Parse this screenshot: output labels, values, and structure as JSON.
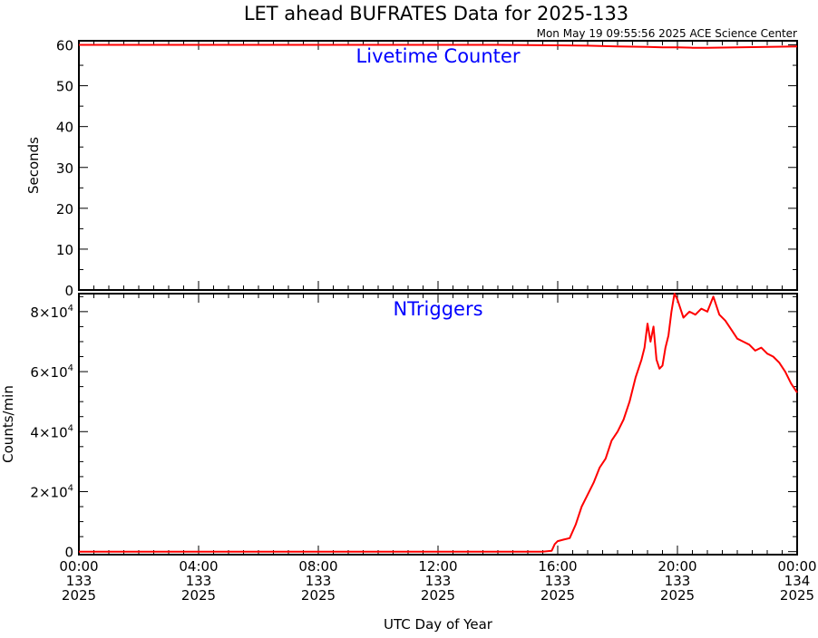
{
  "title": "LET ahead BUFRATES Data for 2025-133",
  "timestamp": "Mon May 19 09:55:56 2025 ACE Science Center",
  "x_axis_label": "UTC Day of Year",
  "colors": {
    "data": "#ff0000",
    "panel_title": "#0000ff",
    "axes": "#000000",
    "background": "#ffffff"
  },
  "chart_data": [
    {
      "type": "line",
      "panel_title": "Livetime Counter",
      "ylabel": "Seconds",
      "ylim": [
        0,
        61
      ],
      "xlim": [
        0,
        24
      ],
      "y_ticks": [
        0,
        10,
        20,
        30,
        40,
        50,
        60
      ],
      "y_tick_labels": [
        "0",
        "10",
        "20",
        "30",
        "40",
        "50",
        "60"
      ],
      "x_ticks": [
        0,
        4,
        8,
        12,
        16,
        20,
        24
      ],
      "x_tick_labels": [
        [
          "00:00",
          "133",
          "2025"
        ],
        [
          "04:00",
          "133",
          "2025"
        ],
        [
          "08:00",
          "133",
          "2025"
        ],
        [
          "12:00",
          "133",
          "2025"
        ],
        [
          "16:00",
          "133",
          "2025"
        ],
        [
          "20:00",
          "133",
          "2025"
        ],
        [
          "00:00",
          "134",
          "2025"
        ]
      ],
      "x": [
        0,
        2,
        4,
        6,
        8,
        10,
        12,
        14,
        16,
        17,
        18,
        19,
        19.5,
        20,
        20.5,
        21,
        22,
        23,
        24
      ],
      "y": [
        60,
        60,
        60,
        60,
        60,
        60,
        60,
        60,
        59.9,
        59.8,
        59.6,
        59.5,
        59.4,
        59.4,
        59.3,
        59.3,
        59.4,
        59.5,
        59.6
      ]
    },
    {
      "type": "line",
      "panel_title": "NTriggers",
      "ylabel": "Counts/min",
      "ylim": [
        -1000,
        86000
      ],
      "xlim": [
        0,
        24
      ],
      "y_ticks": [
        0,
        20000,
        40000,
        60000,
        80000
      ],
      "y_tick_labels": [
        {
          "mantissa": "0",
          "exponent": ""
        },
        {
          "mantissa": "2×10",
          "exponent": "4"
        },
        {
          "mantissa": "4×10",
          "exponent": "4"
        },
        {
          "mantissa": "6×10",
          "exponent": "4"
        },
        {
          "mantissa": "8×10",
          "exponent": "4"
        }
      ],
      "x_ticks": [
        0,
        4,
        8,
        12,
        16,
        20,
        24
      ],
      "x_tick_labels": [
        [
          "00:00",
          "133",
          "2025"
        ],
        [
          "04:00",
          "133",
          "2025"
        ],
        [
          "08:00",
          "133",
          "2025"
        ],
        [
          "12:00",
          "133",
          "2025"
        ],
        [
          "16:00",
          "133",
          "2025"
        ],
        [
          "20:00",
          "133",
          "2025"
        ],
        [
          "00:00",
          "134",
          "2025"
        ]
      ],
      "x": [
        0,
        2,
        4,
        6,
        8,
        10,
        12,
        14,
        15.5,
        15.8,
        15.9,
        16.0,
        16.2,
        16.4,
        16.6,
        16.8,
        17.0,
        17.2,
        17.4,
        17.6,
        17.8,
        18.0,
        18.2,
        18.4,
        18.6,
        18.8,
        18.9,
        19.0,
        19.1,
        19.2,
        19.3,
        19.4,
        19.5,
        19.6,
        19.7,
        19.8,
        19.9,
        20.0,
        20.2,
        20.4,
        20.6,
        20.8,
        21.0,
        21.2,
        21.4,
        21.6,
        21.8,
        22.0,
        22.2,
        22.4,
        22.6,
        22.8,
        23.0,
        23.2,
        23.4,
        23.6,
        23.8,
        24.0
      ],
      "y": [
        0,
        0,
        0,
        0,
        0,
        0,
        0,
        0,
        0,
        300,
        2500,
        3500,
        4000,
        4500,
        9000,
        15000,
        19000,
        23000,
        28000,
        31000,
        37000,
        40000,
        44000,
        50000,
        58000,
        64000,
        68000,
        76000,
        70000,
        75000,
        64000,
        61000,
        62000,
        68000,
        72000,
        80000,
        86000,
        84000,
        78000,
        80000,
        79000,
        81000,
        80000,
        85000,
        79000,
        77000,
        74000,
        71000,
        70000,
        69000,
        67000,
        68000,
        66000,
        65000,
        63000,
        60000,
        56000,
        53000
      ]
    }
  ]
}
